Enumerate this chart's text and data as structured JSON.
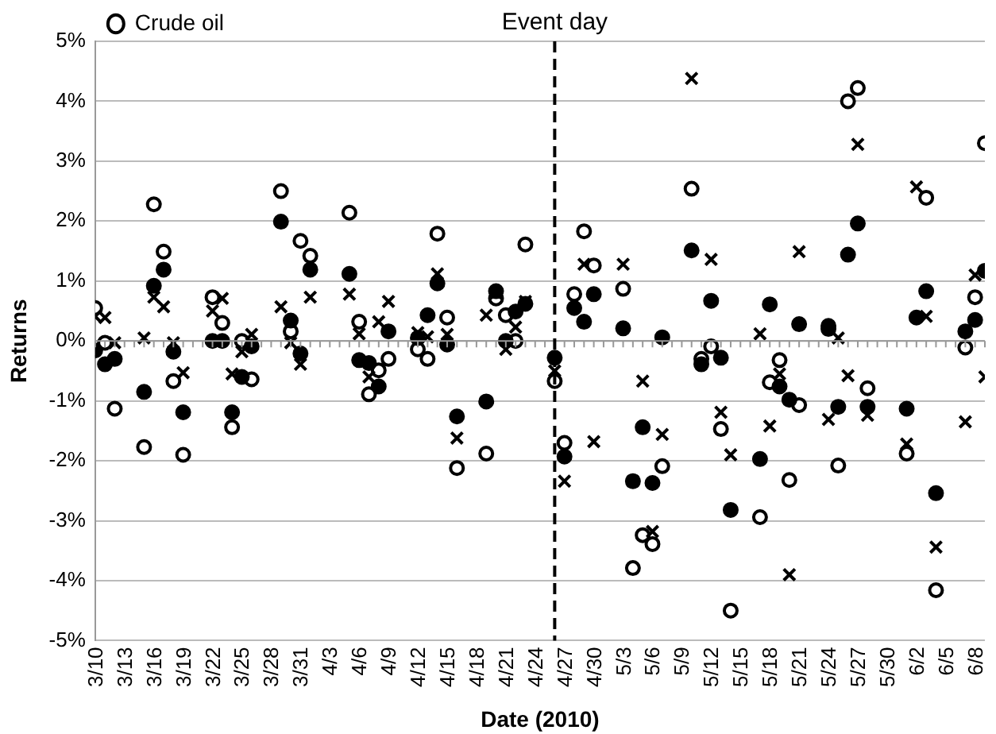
{
  "chart_data": {
    "type": "scatter",
    "xlabel": "Date (2010)",
    "ylabel": "Returns",
    "x": [
      "2010-03-10",
      "2010-03-11",
      "2010-03-12",
      "2010-03-15",
      "2010-03-16",
      "2010-03-17",
      "2010-03-18",
      "2010-03-19",
      "2010-03-22",
      "2010-03-23",
      "2010-03-24",
      "2010-03-25",
      "2010-03-26",
      "2010-03-29",
      "2010-03-30",
      "2010-03-31",
      "2010-04-01",
      "2010-04-05",
      "2010-04-06",
      "2010-04-07",
      "2010-04-08",
      "2010-04-09",
      "2010-04-12",
      "2010-04-13",
      "2010-04-14",
      "2010-04-15",
      "2010-04-16",
      "2010-04-19",
      "2010-04-20",
      "2010-04-21",
      "2010-04-22",
      "2010-04-23",
      "2010-04-26",
      "2010-04-27",
      "2010-04-28",
      "2010-04-29",
      "2010-04-30",
      "2010-05-03",
      "2010-05-04",
      "2010-05-05",
      "2010-05-06",
      "2010-05-07",
      "2010-05-10",
      "2010-05-11",
      "2010-05-12",
      "2010-05-13",
      "2010-05-14",
      "2010-05-17",
      "2010-05-18",
      "2010-05-19",
      "2010-05-20",
      "2010-05-21",
      "2010-05-24",
      "2010-05-25",
      "2010-05-26",
      "2010-05-27",
      "2010-05-28",
      "2010-06-01",
      "2010-06-02",
      "2010-06-03",
      "2010-06-04",
      "2010-06-07",
      "2010-06-08",
      "2010-06-09"
    ],
    "series": [
      {
        "color": "#000000",
        "marker": "cross",
        "values": [
          0.41,
          0.39,
          -0.03,
          0.05,
          0.73,
          0.57,
          -0.03,
          -0.53,
          0.5,
          0.71,
          -0.55,
          -0.18,
          0.11,
          0.57,
          -0.03,
          -0.39,
          0.73,
          0.78,
          0.12,
          -0.6,
          0.32,
          0.66,
          0.14,
          0.07,
          1.12,
          0.11,
          -1.62,
          0.43,
          0.8,
          -0.14,
          0.23,
          0.66,
          -0.5,
          -2.34,
          null,
          1.28,
          -1.68,
          1.28,
          -2.34,
          -0.67,
          -3.18,
          -1.56,
          4.38,
          null,
          1.36,
          -1.19,
          -1.9,
          0.12,
          -1.42,
          -0.55,
          -3.9,
          1.49,
          -1.31,
          0.05,
          -0.58,
          3.28,
          -1.24,
          -1.72,
          2.57,
          0.41,
          -3.44,
          -1.35,
          1.1,
          -0.6
        ]
      },
      {
        "color": "#000000",
        "marker": "circle",
        "values": [
          -0.16,
          -0.39,
          -0.3,
          -0.85,
          0.92,
          1.19,
          -0.18,
          -1.19,
          0.0,
          0.0,
          -1.19,
          -0.6,
          -0.09,
          1.99,
          0.34,
          -0.21,
          1.19,
          1.12,
          -0.32,
          -0.37,
          -0.76,
          0.16,
          0.05,
          0.43,
          0.96,
          -0.06,
          -1.26,
          -1.01,
          0.83,
          0.0,
          0.49,
          0.62,
          -0.28,
          -1.93,
          0.55,
          0.32,
          0.78,
          0.21,
          -2.34,
          -1.44,
          -2.37,
          0.06,
          1.51,
          -0.39,
          0.67,
          -0.28,
          -2.82,
          -1.97,
          0.61,
          -0.76,
          -0.98,
          0.28,
          0.25,
          -1.1,
          1.44,
          1.96,
          -1.1,
          -1.13,
          0.39,
          0.83,
          -2.54,
          0.16,
          0.35,
          1.17
        ]
      },
      {
        "name": "Crude oil",
        "color": "#ffffff",
        "marker": "circle",
        "values": [
          0.55,
          -0.03,
          -1.13,
          -1.77,
          2.28,
          1.49,
          -0.67,
          -1.9,
          0.73,
          0.3,
          -1.44,
          0.0,
          -0.64,
          2.5,
          0.16,
          1.67,
          1.42,
          2.14,
          0.32,
          -0.89,
          -0.49,
          -0.3,
          -0.14,
          -0.3,
          1.79,
          0.39,
          -2.12,
          -1.88,
          0.71,
          0.43,
          0.0,
          1.61,
          -0.67,
          -1.7,
          0.78,
          1.83,
          1.26,
          0.87,
          -3.79,
          -3.24,
          -3.39,
          -2.09,
          2.54,
          -0.3,
          -0.09,
          -1.47,
          -4.5,
          -2.94,
          -0.69,
          -0.32,
          -2.32,
          -1.07,
          0.2,
          -2.08,
          4.0,
          4.22,
          -0.79,
          -1.88,
          null,
          2.39,
          -4.16,
          -0.11,
          0.73,
          3.3
        ]
      }
    ],
    "xlim": [
      "2010-03-10",
      "2010-06-09"
    ],
    "xticks": [
      {
        "value": "2010-03-10",
        "label": "3/10"
      },
      {
        "value": "2010-03-13",
        "label": "3/13"
      },
      {
        "value": "2010-03-16",
        "label": "3/16"
      },
      {
        "value": "2010-03-19",
        "label": "3/19"
      },
      {
        "value": "2010-03-22",
        "label": "3/22"
      },
      {
        "value": "2010-03-25",
        "label": "3/25"
      },
      {
        "value": "2010-03-28",
        "label": "3/28"
      },
      {
        "value": "2010-03-31",
        "label": "3/31"
      },
      {
        "value": "2010-04-03",
        "label": "4/3"
      },
      {
        "value": "2010-04-06",
        "label": "4/6"
      },
      {
        "value": "2010-04-09",
        "label": "4/9"
      },
      {
        "value": "2010-04-12",
        "label": "4/12"
      },
      {
        "value": "2010-04-15",
        "label": "4/15"
      },
      {
        "value": "2010-04-18",
        "label": "4/18"
      },
      {
        "value": "2010-04-21",
        "label": "4/21"
      },
      {
        "value": "2010-04-24",
        "label": "4/24"
      },
      {
        "value": "2010-04-27",
        "label": "4/27"
      },
      {
        "value": "2010-04-30",
        "label": "4/30"
      },
      {
        "value": "2010-05-03",
        "label": "5/3"
      },
      {
        "value": "2010-05-06",
        "label": "5/6"
      },
      {
        "value": "2010-05-09",
        "label": "5/9"
      },
      {
        "value": "2010-05-12",
        "label": "5/12"
      },
      {
        "value": "2010-05-15",
        "label": "5/15"
      },
      {
        "value": "2010-05-18",
        "label": "5/18"
      },
      {
        "value": "2010-05-21",
        "label": "5/21"
      },
      {
        "value": "2010-05-24",
        "label": "5/24"
      },
      {
        "value": "2010-05-27",
        "label": "5/27"
      },
      {
        "value": "2010-05-30",
        "label": "5/30"
      },
      {
        "value": "2010-06-02",
        "label": "6/2"
      },
      {
        "value": "2010-06-05",
        "label": "6/5"
      },
      {
        "value": "2010-06-08",
        "label": "6/8"
      }
    ],
    "ylim": [
      -5,
      5
    ],
    "yticks": [
      {
        "value": -5,
        "label": "-5%"
      },
      {
        "value": -4,
        "label": "-4%"
      },
      {
        "value": -3,
        "label": "-3%"
      },
      {
        "value": -2,
        "label": "-2%"
      },
      {
        "value": -1,
        "label": "-1%"
      },
      {
        "value": 0,
        "label": "0%"
      },
      {
        "value": 1,
        "label": "1%"
      },
      {
        "value": 2,
        "label": "2%"
      },
      {
        "value": 3,
        "label": "3%"
      },
      {
        "value": 4,
        "label": "4%"
      },
      {
        "value": 5,
        "label": "5%"
      }
    ],
    "grid": "y",
    "legend": "top left",
    "ref_lines": [
      {
        "axis": "x",
        "value": "2010-04-26",
        "label": "Event day",
        "color": "#000000",
        "line_style": "dashed"
      }
    ]
  }
}
